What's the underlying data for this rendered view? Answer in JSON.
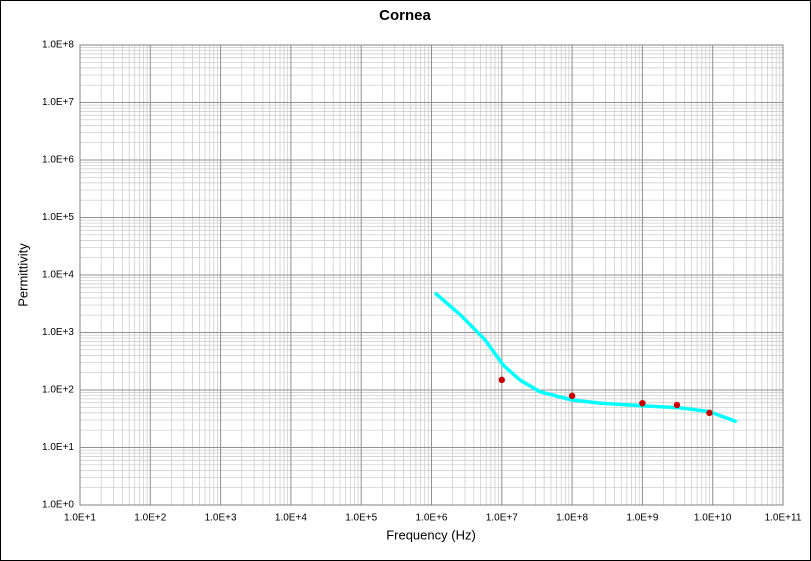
{
  "chart_data": {
    "type": "line",
    "title": "Cornea",
    "x_label": "Frequency (Hz)",
    "y_label": "Permittivity",
    "log_x": true,
    "log_y": true,
    "grid": true,
    "xlim": [
      10,
      100000000000
    ],
    "ylim": [
      1,
      100000000
    ],
    "xticks": [
      {
        "value": 10,
        "label": "1.0E+1"
      },
      {
        "value": 100,
        "label": "1.0E+2"
      },
      {
        "value": 1000,
        "label": "1.0E+3"
      },
      {
        "value": 10000,
        "label": "1.0E+4"
      },
      {
        "value": 100000,
        "label": "1.0E+5"
      },
      {
        "value": 1000000,
        "label": "1.0E+6"
      },
      {
        "value": 10000000,
        "label": "1.0E+7"
      },
      {
        "value": 100000000,
        "label": "1.0E+8"
      },
      {
        "value": 1000000000,
        "label": "1.0E+9"
      },
      {
        "value": 10000000000,
        "label": "1.0E+10"
      },
      {
        "value": 100000000000,
        "label": "1.0E+11"
      }
    ],
    "yticks": [
      {
        "value": 1,
        "label": "1.0E+0"
      },
      {
        "value": 10,
        "label": "1.0E+1"
      },
      {
        "value": 100,
        "label": "1.0E+2"
      },
      {
        "value": 1000,
        "label": "1.0E+3"
      },
      {
        "value": 10000,
        "label": "1.0E+4"
      },
      {
        "value": 100000,
        "label": "1.0E+5"
      },
      {
        "value": 1000000,
        "label": "1.0E+6"
      },
      {
        "value": 10000000,
        "label": "1.0E+7"
      },
      {
        "value": 100000000,
        "label": "1.0E+8"
      }
    ],
    "series": [
      {
        "kind": "line",
        "color": "#00ffff",
        "x": [
          1120000,
          2600000,
          5800000,
          10500000,
          18000000,
          35000000,
          100000000,
          250000000,
          1050000000,
          3400000000,
          9000000000,
          22000000000
        ],
        "values": [
          4900,
          2000,
          740,
          270,
          150,
          93,
          67,
          59,
          53,
          49,
          42,
          28
        ]
      },
      {
        "kind": "points",
        "color": "#cc0000",
        "x": [
          10000000,
          100000000,
          1000000000,
          3100000000,
          9000000000
        ],
        "values": [
          150,
          79,
          59,
          55,
          40
        ]
      }
    ]
  }
}
